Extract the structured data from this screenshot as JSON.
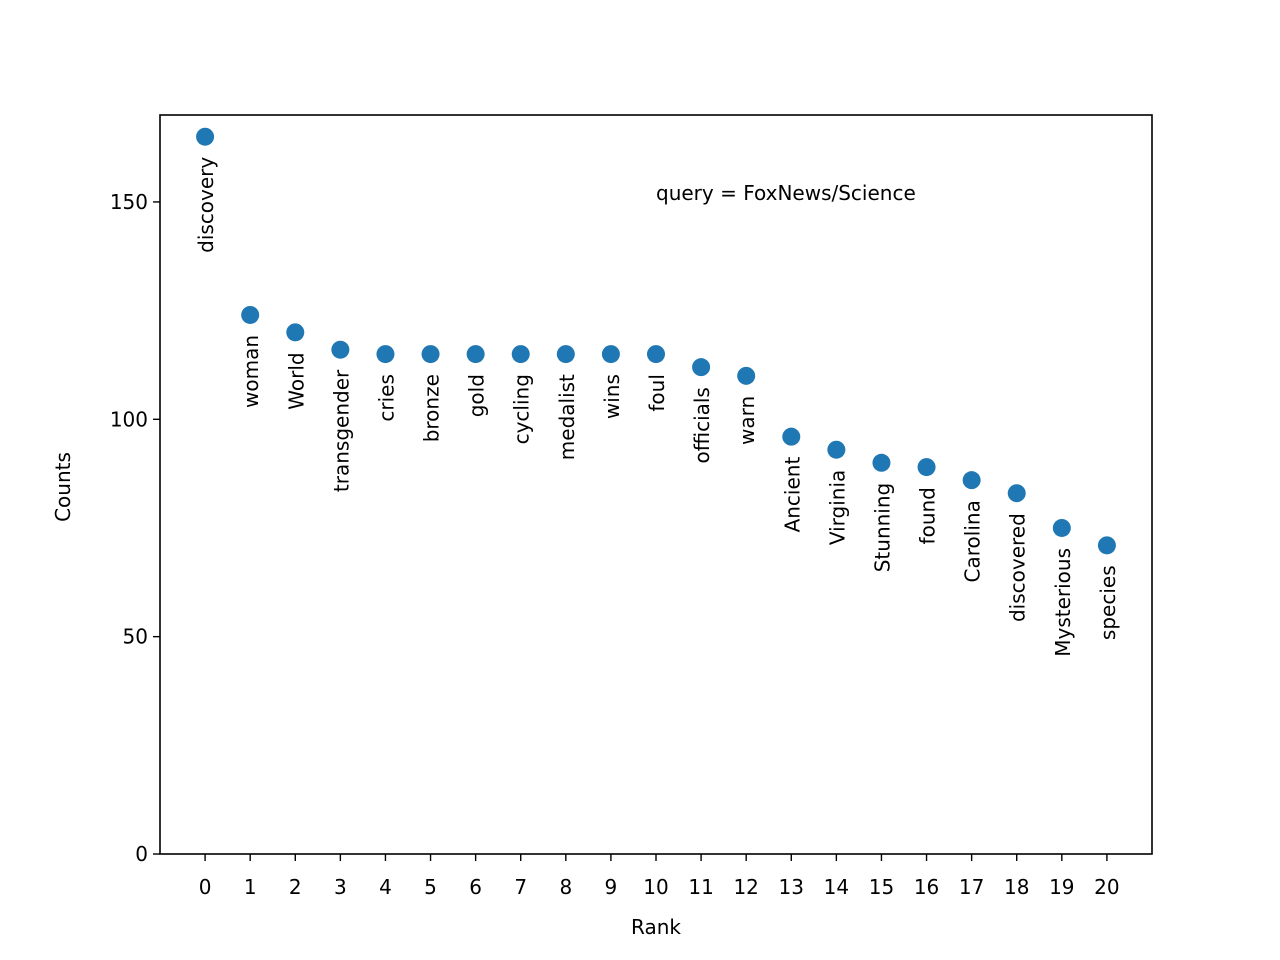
{
  "chart_data": {
    "type": "scatter",
    "annotation": "query = FoxNews/Science",
    "xlabel": "Rank",
    "ylabel": "Counts",
    "xlim": [
      -1,
      21
    ],
    "ylim": [
      0,
      170
    ],
    "x_ticks": [
      0,
      1,
      2,
      3,
      4,
      5,
      6,
      7,
      8,
      9,
      10,
      11,
      12,
      13,
      14,
      15,
      16,
      17,
      18,
      19,
      20
    ],
    "y_ticks": [
      0,
      50,
      100,
      150
    ],
    "grid": false,
    "marker_color": "#1f77b4",
    "points": [
      {
        "x": 0,
        "y": 165,
        "label": "discovery"
      },
      {
        "x": 1,
        "y": 124,
        "label": "woman"
      },
      {
        "x": 2,
        "y": 120,
        "label": "World"
      },
      {
        "x": 3,
        "y": 116,
        "label": "transgender"
      },
      {
        "x": 4,
        "y": 115,
        "label": "cries"
      },
      {
        "x": 5,
        "y": 115,
        "label": "bronze"
      },
      {
        "x": 6,
        "y": 115,
        "label": "gold"
      },
      {
        "x": 7,
        "y": 115,
        "label": "cycling"
      },
      {
        "x": 8,
        "y": 115,
        "label": "medalist"
      },
      {
        "x": 9,
        "y": 115,
        "label": "wins"
      },
      {
        "x": 10,
        "y": 115,
        "label": "foul"
      },
      {
        "x": 11,
        "y": 112,
        "label": "officials"
      },
      {
        "x": 12,
        "y": 110,
        "label": "warn"
      },
      {
        "x": 13,
        "y": 96,
        "label": "Ancient"
      },
      {
        "x": 14,
        "y": 93,
        "label": "Virginia"
      },
      {
        "x": 15,
        "y": 90,
        "label": "Stunning"
      },
      {
        "x": 16,
        "y": 89,
        "label": "found"
      },
      {
        "x": 17,
        "y": 86,
        "label": "Carolina"
      },
      {
        "x": 18,
        "y": 83,
        "label": "discovered"
      },
      {
        "x": 19,
        "y": 75,
        "label": "Mysterious"
      },
      {
        "x": 20,
        "y": 71,
        "label": "species"
      }
    ]
  }
}
